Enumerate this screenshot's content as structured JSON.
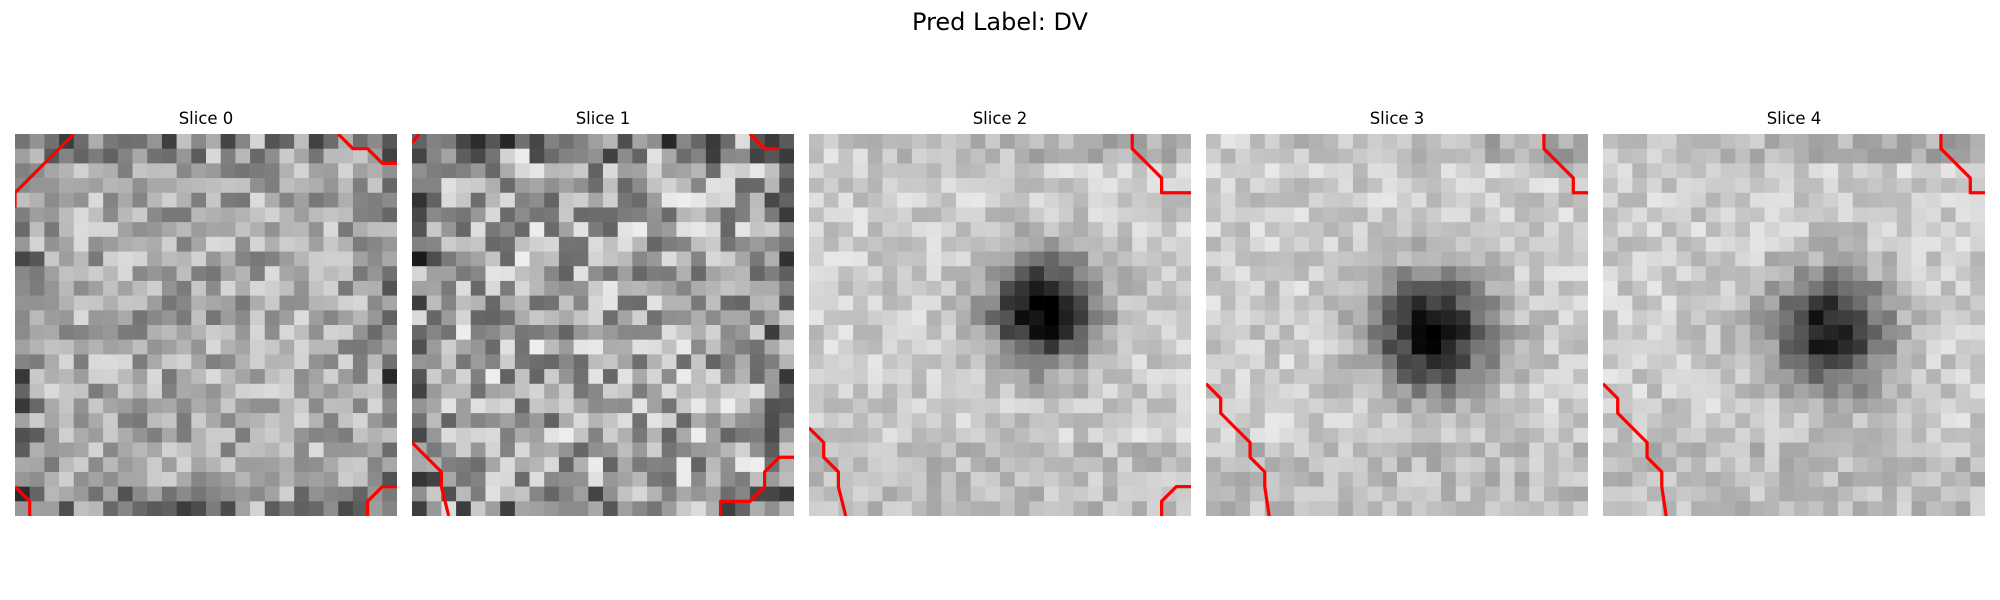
{
  "figure": {
    "suptitle": "Pred Label: DV",
    "slices": [
      {
        "title": "Slice 0",
        "pattern": "noise",
        "seed": 11,
        "blob": null,
        "contours": [
          [
            [
              4,
              0
            ],
            [
              3,
              1
            ],
            [
              2,
              2
            ],
            [
              1,
              3
            ],
            [
              0,
              4
            ],
            [
              0,
              5
            ]
          ],
          [
            [
              22,
              0
            ],
            [
              23,
              1
            ],
            [
              24,
              1
            ],
            [
              25,
              2
            ],
            [
              26,
              2
            ]
          ],
          [
            [
              0,
              24
            ],
            [
              1,
              25
            ],
            [
              1,
              26
            ]
          ],
          [
            [
              24,
              26
            ],
            [
              24,
              25
            ],
            [
              25,
              24
            ],
            [
              26,
              24
            ]
          ]
        ]
      },
      {
        "title": "Slice 1",
        "pattern": "noise_strong",
        "seed": 23,
        "blob": null,
        "contours": [
          [
            [
              0,
              0.6
            ],
            [
              0.5,
              0
            ]
          ],
          [
            [
              23,
              0
            ],
            [
              24,
              1
            ],
            [
              25,
              1
            ]
          ],
          [
            [
              0,
              21
            ],
            [
              1,
              22
            ],
            [
              2,
              23
            ],
            [
              2,
              24
            ],
            [
              2.5,
              26
            ]
          ],
          [
            [
              21,
              26
            ],
            [
              21,
              25
            ],
            [
              23,
              25
            ],
            [
              24,
              24
            ],
            [
              24,
              23
            ],
            [
              25,
              22
            ],
            [
              26,
              22
            ]
          ]
        ]
      },
      {
        "title": "Slice 2",
        "pattern": "blob",
        "seed": 37,
        "blob": {
          "cx": 16,
          "cy": 12,
          "r": 3.6,
          "depth": 0.85
        },
        "contours": [
          [
            [
              22,
              0
            ],
            [
              22,
              1
            ],
            [
              23,
              2
            ],
            [
              24,
              3
            ],
            [
              24,
              4
            ],
            [
              25,
              4
            ],
            [
              26,
              4
            ]
          ],
          [
            [
              0,
              20
            ],
            [
              1,
              21
            ],
            [
              1,
              22
            ],
            [
              2,
              23
            ],
            [
              2,
              24
            ],
            [
              2.5,
              26
            ]
          ],
          [
            [
              24,
              26
            ],
            [
              24,
              25
            ],
            [
              25,
              24
            ],
            [
              26,
              24
            ]
          ]
        ]
      },
      {
        "title": "Slice 3",
        "pattern": "blob",
        "seed": 41,
        "blob": {
          "cx": 15.5,
          "cy": 13.5,
          "r": 4.0,
          "depth": 0.78
        },
        "contours": [
          [
            [
              23,
              0
            ],
            [
              23,
              1
            ],
            [
              24,
              2
            ],
            [
              25,
              3
            ],
            [
              25,
              4
            ],
            [
              26,
              4
            ]
          ],
          [
            [
              0,
              17
            ],
            [
              1,
              18
            ],
            [
              1,
              19
            ],
            [
              2,
              20
            ],
            [
              3,
              21
            ],
            [
              3,
              22
            ],
            [
              4,
              23
            ],
            [
              4,
              24
            ],
            [
              4.3,
              26
            ]
          ]
        ]
      },
      {
        "title": "Slice 4",
        "pattern": "blob",
        "seed": 53,
        "blob": {
          "cx": 15.5,
          "cy": 13.5,
          "r": 3.9,
          "depth": 0.72
        },
        "contours": [
          [
            [
              23,
              0
            ],
            [
              23,
              1
            ],
            [
              24,
              2
            ],
            [
              25,
              3
            ],
            [
              25,
              4
            ],
            [
              26,
              4
            ]
          ],
          [
            [
              0,
              17
            ],
            [
              1,
              18
            ],
            [
              1,
              19
            ],
            [
              2,
              20
            ],
            [
              3,
              21
            ],
            [
              3,
              22
            ],
            [
              4,
              23
            ],
            [
              4,
              24
            ],
            [
              4.3,
              26
            ]
          ]
        ]
      }
    ]
  }
}
